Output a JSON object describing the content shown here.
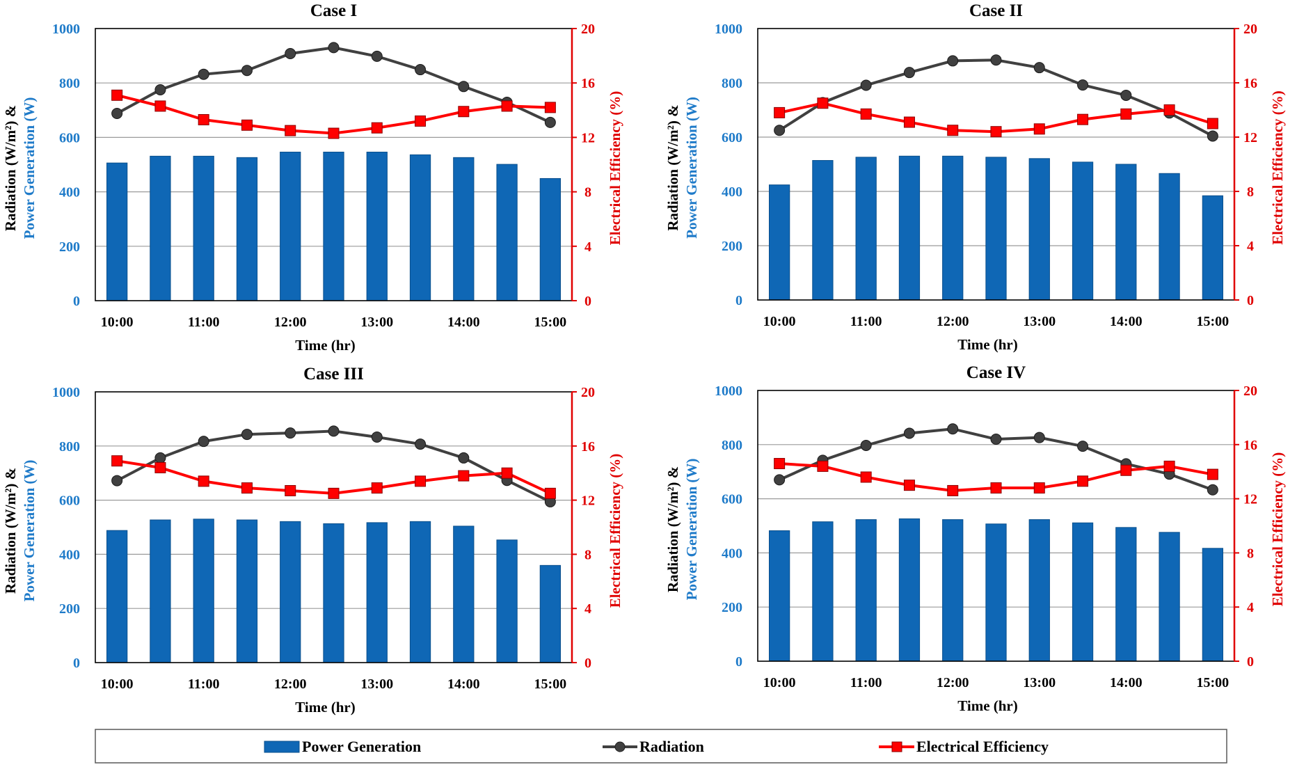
{
  "chart_data": [
    {
      "type": "bar+line",
      "title": "Case I",
      "categories": [
        "10:00",
        "10:30",
        "11:00",
        "11:30",
        "12:00",
        "12:30",
        "13:00",
        "13:30",
        "14:00",
        "14:30",
        "15:00"
      ],
      "x_tick_labels": [
        "10:00",
        "11:00",
        "12:00",
        "13:00",
        "14:00",
        "15:00"
      ],
      "xlabel": "Time (hr)",
      "ylabel_line1": "Radiation (W/m²) &",
      "ylabel_line2": "Power Generation (W)",
      "y2label": "Electrical Efficiency (%)",
      "ylim": [
        0,
        1000
      ],
      "y_ticks": [
        0,
        200,
        400,
        600,
        800,
        1000
      ],
      "y2lim": [
        0,
        20
      ],
      "y2_ticks": [
        0,
        4,
        8,
        12,
        16,
        20
      ],
      "series": [
        {
          "name": "Power Generation",
          "kind": "bar",
          "axis": "left",
          "values": [
            506,
            531,
            531,
            526,
            546,
            546,
            546,
            536,
            526,
            501,
            449
          ]
        },
        {
          "name": "Radiation",
          "kind": "line",
          "axis": "left",
          "values": [
            688,
            775,
            832,
            846,
            908,
            930,
            898,
            849,
            787,
            729,
            655
          ]
        },
        {
          "name": "Electrical Efficiency",
          "kind": "line",
          "axis": "right",
          "values": [
            15.1,
            14.3,
            13.3,
            12.9,
            12.5,
            12.3,
            12.7,
            13.2,
            13.9,
            14.3,
            14.2
          ]
        }
      ]
    },
    {
      "type": "bar+line",
      "title": "Case II",
      "categories": [
        "10:00",
        "10:30",
        "11:00",
        "11:30",
        "12:00",
        "12:30",
        "13:00",
        "13:30",
        "14:00",
        "14:30",
        "15:00"
      ],
      "x_tick_labels": [
        "10:00",
        "11:00",
        "12:00",
        "13:00",
        "14:00",
        "15:00"
      ],
      "xlabel": "Time (hr)",
      "ylabel_line1": "Radiation (W/m²) &",
      "ylabel_line2": "Power Generation (W)",
      "y2label": "Electrical Efficiency (%)",
      "ylim": [
        0,
        1000
      ],
      "y_ticks": [
        0,
        200,
        400,
        600,
        800,
        1000
      ],
      "y2lim": [
        0,
        20
      ],
      "y2_ticks": [
        0,
        4,
        8,
        12,
        16,
        20
      ],
      "series": [
        {
          "name": "Power Generation",
          "kind": "bar",
          "axis": "left",
          "values": [
            424,
            514,
            526,
            530,
            530,
            526,
            521,
            508,
            500,
            466,
            384
          ]
        },
        {
          "name": "Radiation",
          "kind": "line",
          "axis": "left",
          "values": [
            625,
            727,
            791,
            838,
            881,
            884,
            856,
            792,
            754,
            689,
            604
          ]
        },
        {
          "name": "Electrical Efficiency",
          "kind": "line",
          "axis": "right",
          "values": [
            13.8,
            14.5,
            13.7,
            13.1,
            12.5,
            12.4,
            12.6,
            13.3,
            13.7,
            14.0,
            13.0
          ]
        }
      ]
    },
    {
      "type": "bar+line",
      "title": "Case III",
      "categories": [
        "10:00",
        "10:30",
        "11:00",
        "11:30",
        "12:00",
        "12:30",
        "13:00",
        "13:30",
        "14:00",
        "14:30",
        "15:00"
      ],
      "x_tick_labels": [
        "10:00",
        "11:00",
        "12:00",
        "13:00",
        "14:00",
        "15:00"
      ],
      "xlabel": "Time (hr)",
      "ylabel_line1": "Radiation (W/m²) &",
      "ylabel_line2": "Power Generation (W)",
      "y2label": "Electrical Efficiency (%)",
      "ylim": [
        0,
        1000
      ],
      "y_ticks": [
        0,
        200,
        400,
        600,
        800,
        1000
      ],
      "y2lim": [
        0,
        20
      ],
      "y2_ticks": [
        0,
        4,
        8,
        12,
        16,
        20
      ],
      "series": [
        {
          "name": "Power Generation",
          "kind": "bar",
          "axis": "left",
          "values": [
            488,
            527,
            530,
            527,
            521,
            513,
            517,
            521,
            504,
            453,
            359
          ]
        },
        {
          "name": "Radiation",
          "kind": "line",
          "axis": "left",
          "values": [
            672,
            756,
            817,
            843,
            848,
            855,
            833,
            807,
            756,
            673,
            594
          ]
        },
        {
          "name": "Electrical Efficiency",
          "kind": "line",
          "axis": "right",
          "values": [
            14.9,
            14.4,
            13.4,
            12.9,
            12.7,
            12.5,
            12.9,
            13.4,
            13.8,
            14.0,
            12.5
          ]
        }
      ]
    },
    {
      "type": "bar+line",
      "title": "Case IV",
      "categories": [
        "10:00",
        "10:30",
        "11:00",
        "11:30",
        "12:00",
        "12:30",
        "13:00",
        "13:30",
        "14:00",
        "14:30",
        "15:00"
      ],
      "x_tick_labels": [
        "10:00",
        "11:00",
        "12:00",
        "13:00",
        "14:00",
        "15:00"
      ],
      "xlabel": "Time (hr)",
      "ylabel_line1": "Radiation (W/m²) &",
      "ylabel_line2": "Power Generation (W)",
      "y2label": "Electrical Efficiency (%)",
      "ylim": [
        0,
        1000
      ],
      "y_ticks": [
        0,
        200,
        400,
        600,
        800,
        1000
      ],
      "y2lim": [
        0,
        20
      ],
      "y2_ticks": [
        0,
        4,
        8,
        12,
        16,
        20
      ],
      "series": [
        {
          "name": "Power Generation",
          "kind": "bar",
          "axis": "left",
          "values": [
            482,
            515,
            523,
            526,
            523,
            507,
            523,
            511,
            494,
            476,
            417
          ]
        },
        {
          "name": "Radiation",
          "kind": "line",
          "axis": "left",
          "values": [
            670,
            742,
            797,
            842,
            858,
            820,
            826,
            794,
            729,
            691,
            633
          ]
        },
        {
          "name": "Electrical Efficiency",
          "kind": "line",
          "axis": "right",
          "values": [
            14.6,
            14.4,
            13.6,
            13.0,
            12.6,
            12.8,
            12.8,
            13.3,
            14.1,
            14.4,
            13.8
          ]
        }
      ]
    }
  ],
  "legend": {
    "position": "bottom",
    "items": [
      {
        "label": "Power Generation",
        "marker": "bar"
      },
      {
        "label": "Radiation",
        "marker": "circle"
      },
      {
        "label": "Electrical Efficiency",
        "marker": "square"
      }
    ]
  },
  "colors": {
    "bar": "#0f67b5",
    "bar_edge": "#0a4f8c",
    "radiation": "#404040",
    "efficiency": "#ff0000",
    "left_axis": "#1f7bc9",
    "right_axis": "#e00000",
    "grid": "#9a9a9a"
  }
}
